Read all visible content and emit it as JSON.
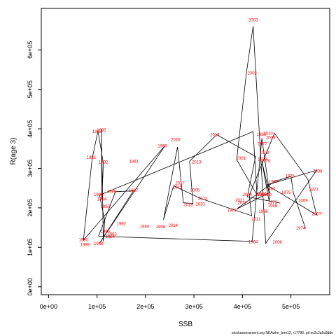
{
  "chart_data": {
    "type": "line",
    "xlabel": "SSB",
    "ylabel": "R(age 3)",
    "xlim": [
      -15000,
      580000
    ],
    "ylim": [
      -20000,
      705000
    ],
    "x_ticks": [
      0,
      100000,
      200000,
      300000,
      400000,
      500000
    ],
    "x_tick_labels": [
      "0e+00",
      "1e+05",
      "2e+05",
      "3e+05",
      "4e+05",
      "5e+05"
    ],
    "y_ticks": [
      0,
      100000,
      200000,
      300000,
      400000,
      500000,
      600000
    ],
    "y_tick_labels": [
      "0e+00",
      "1e+05",
      "2e+05",
      "3e+05",
      "4e+05",
      "5e+05",
      "6e+05"
    ],
    "label_color": "#ff0000",
    "line_color": "#000000",
    "source_note": "stockassessment.org NEAwhe_bmr12, r17796, git ec2c2a0c8dde",
    "series": [
      {
        "points": [
          {
            "label": "1974",
            "x": 530000,
            "y": 148000
          },
          {
            "label": "1975",
            "x": 505000,
            "y": 238000
          },
          {
            "label": "1976",
            "x": 500000,
            "y": 280000
          },
          {
            "label": "1977",
            "x": 465000,
            "y": 266000
          },
          {
            "label": "1978",
            "x": 388000,
            "y": 197000
          },
          {
            "label": "1979",
            "x": 455000,
            "y": 238000
          },
          {
            "label": "1980",
            "x": 440000,
            "y": 318000
          },
          {
            "label": "1981",
            "x": 455000,
            "y": 217000
          },
          {
            "label": "1982",
            "x": 457000,
            "y": 227000
          },
          {
            "label": "1983",
            "x": 440000,
            "y": 376000
          },
          {
            "label": "1984",
            "x": 420000,
            "y": 115000
          },
          {
            "label": "1985",
            "x": 103000,
            "y": 128000
          },
          {
            "label": "1986",
            "x": 138000,
            "y": 241000
          },
          {
            "label": "1987",
            "x": 175000,
            "y": 243000
          },
          {
            "label": "1988",
            "x": 105000,
            "y": 110000
          },
          {
            "label": "1989",
            "x": 240000,
            "y": 357000
          },
          {
            "label": "1990",
            "x": 72000,
            "y": 118000
          },
          {
            "label": "1991",
            "x": 90000,
            "y": 325000
          },
          {
            "label": "1992",
            "x": 102000,
            "y": 395000
          },
          {
            "label": "1993",
            "x": 113000,
            "y": 313000
          },
          {
            "label": "1994",
            "x": 110000,
            "y": 221000
          },
          {
            "label": "1995",
            "x": 109000,
            "y": 398000
          },
          {
            "label": "1996",
            "x": 113000,
            "y": 115000
          },
          {
            "label": "1997",
            "x": 116000,
            "y": 168000
          },
          {
            "label": "1998",
            "x": 105000,
            "y": 232000
          },
          {
            "label": "1999",
            "x": 422000,
            "y": 393000
          },
          {
            "label": "2000",
            "x": 430000,
            "y": 233000
          },
          {
            "label": "2001",
            "x": 388000,
            "y": 322000
          },
          {
            "label": "2002",
            "x": 408000,
            "y": 540000
          },
          {
            "label": "2003",
            "x": 422000,
            "y": 660000
          },
          {
            "label": "2004",
            "x": 448000,
            "y": 110000
          },
          {
            "label": "2005",
            "x": 553000,
            "y": 295000
          },
          {
            "label": "2006",
            "x": 450000,
            "y": 258000
          },
          {
            "label": "2007",
            "x": 553000,
            "y": 182000
          },
          {
            "label": "2008",
            "x": 535000,
            "y": 272000
          },
          {
            "label": "2009",
            "x": 466000,
            "y": 389000
          },
          {
            "label": "2010",
            "x": 414000,
            "y": 232000
          },
          {
            "label": "2011",
            "x": 419000,
            "y": 180000
          },
          {
            "label": "2012",
            "x": 313000,
            "y": 224000
          },
          {
            "label": "2013",
            "x": 258000,
            "y": 256000
          },
          {
            "label": "2014",
            "x": 237000,
            "y": 170000
          },
          {
            "label": "2015",
            "x": 266000,
            "y": 354000
          },
          {
            "label": "2016",
            "x": 278000,
            "y": 213000
          },
          {
            "label": "2017",
            "x": 298000,
            "y": 211000
          },
          {
            "label": "2018",
            "x": 291000,
            "y": 318000
          },
          {
            "label": "2019",
            "x": 347000,
            "y": 385000
          },
          {
            "label": "2020",
            "x": 427000,
            "y": 330000
          },
          {
            "label": "2021",
            "x": 410000,
            "y": 228000
          },
          {
            "label": "2022",
            "x": 478000,
            "y": 212000
          }
        ]
      }
    ],
    "labels": [
      {
        "text": "1990",
        "x": 72000,
        "y": 118000
      },
      {
        "text": "1989",
        "x": 75000,
        "y": 106000
      },
      {
        "text": "1988",
        "x": 103000,
        "y": 109000
      },
      {
        "text": "1991",
        "x": 88000,
        "y": 327000
      },
      {
        "text": "1993",
        "x": 100000,
        "y": 392000
      },
      {
        "text": "1995",
        "x": 109000,
        "y": 396000
      },
      {
        "text": "1992",
        "x": 113000,
        "y": 315000
      },
      {
        "text": "1999",
        "x": 103000,
        "y": 233000
      },
      {
        "text": "1994",
        "x": 110000,
        "y": 221000
      },
      {
        "text": "1986",
        "x": 130000,
        "y": 241000
      },
      {
        "text": "1997",
        "x": 117000,
        "y": 203000
      },
      {
        "text": "1985",
        "x": 117000,
        "y": 140000
      },
      {
        "text": "1983",
        "x": 131000,
        "y": 133000
      },
      {
        "text": "1984",
        "x": 127000,
        "y": 126000
      },
      {
        "text": "1982",
        "x": 150000,
        "y": 159000
      },
      {
        "text": "1987",
        "x": 175000,
        "y": 243000
      },
      {
        "text": "1981",
        "x": 176000,
        "y": 317000
      },
      {
        "text": "1980",
        "x": 198000,
        "y": 152000
      },
      {
        "text": "1998",
        "x": 231000,
        "y": 151000
      },
      {
        "text": "1969",
        "x": 235000,
        "y": 356000
      },
      {
        "text": "2014",
        "x": 257000,
        "y": 155000
      },
      {
        "text": "2016",
        "x": 262000,
        "y": 372000
      },
      {
        "text": "2017",
        "x": 271000,
        "y": 262000
      },
      {
        "text": "2015",
        "x": 266000,
        "y": 251000
      },
      {
        "text": "2013",
        "x": 305000,
        "y": 315000
      },
      {
        "text": "2005",
        "x": 302000,
        "y": 244000
      },
      {
        "text": "2012",
        "x": 318000,
        "y": 223000
      },
      {
        "text": "2018",
        "x": 288000,
        "y": 207000
      },
      {
        "text": "2020",
        "x": 313000,
        "y": 209000
      },
      {
        "text": "2019",
        "x": 343000,
        "y": 384000
      },
      {
        "text": "1979",
        "x": 378000,
        "y": 193000
      },
      {
        "text": "2001",
        "x": 397000,
        "y": 325000
      },
      {
        "text": "2021",
        "x": 395000,
        "y": 219000
      },
      {
        "text": "2022",
        "x": 400000,
        "y": 212000
      },
      {
        "text": "2004",
        "x": 410000,
        "y": 233000
      },
      {
        "text": "2003",
        "x": 422000,
        "y": 675000
      },
      {
        "text": "2002",
        "x": 420000,
        "y": 540000
      },
      {
        "text": "1964",
        "x": 422000,
        "y": 113000
      },
      {
        "text": "2011",
        "x": 428000,
        "y": 171000
      },
      {
        "text": "1990",
        "x": 439000,
        "y": 385000
      },
      {
        "text": "2010",
        "x": 453000,
        "y": 388000
      },
      {
        "text": "2009",
        "x": 458000,
        "y": 377000
      },
      {
        "text": "1977",
        "x": 441000,
        "y": 361000
      },
      {
        "text": "1978",
        "x": 445000,
        "y": 339000
      },
      {
        "text": "1979",
        "x": 441000,
        "y": 322000
      },
      {
        "text": "1979",
        "x": 448000,
        "y": 318000
      },
      {
        "text": "1999",
        "x": 440000,
        "y": 234000
      },
      {
        "text": "2000",
        "x": 450000,
        "y": 233000
      },
      {
        "text": "1977",
        "x": 464000,
        "y": 266000
      },
      {
        "text": "1987",
        "x": 458000,
        "y": 247000
      },
      {
        "text": "1979",
        "x": 462000,
        "y": 213000
      },
      {
        "text": "1988",
        "x": 462000,
        "y": 204000
      },
      {
        "text": "1966",
        "x": 443000,
        "y": 190000
      },
      {
        "text": "2006",
        "x": 472000,
        "y": 112000
      },
      {
        "text": "1974",
        "x": 520000,
        "y": 148000
      },
      {
        "text": "1976",
        "x": 498000,
        "y": 280000
      },
      {
        "text": "1975",
        "x": 490000,
        "y": 238000
      },
      {
        "text": "2009",
        "x": 525000,
        "y": 218000
      },
      {
        "text": "1973",
        "x": 547000,
        "y": 246000
      },
      {
        "text": "2008",
        "x": 555000,
        "y": 292000
      },
      {
        "text": "2007",
        "x": 553000,
        "y": 184000
      },
      {
        "text": "1995",
        "x": 436000,
        "y": 233000
      }
    ]
  }
}
